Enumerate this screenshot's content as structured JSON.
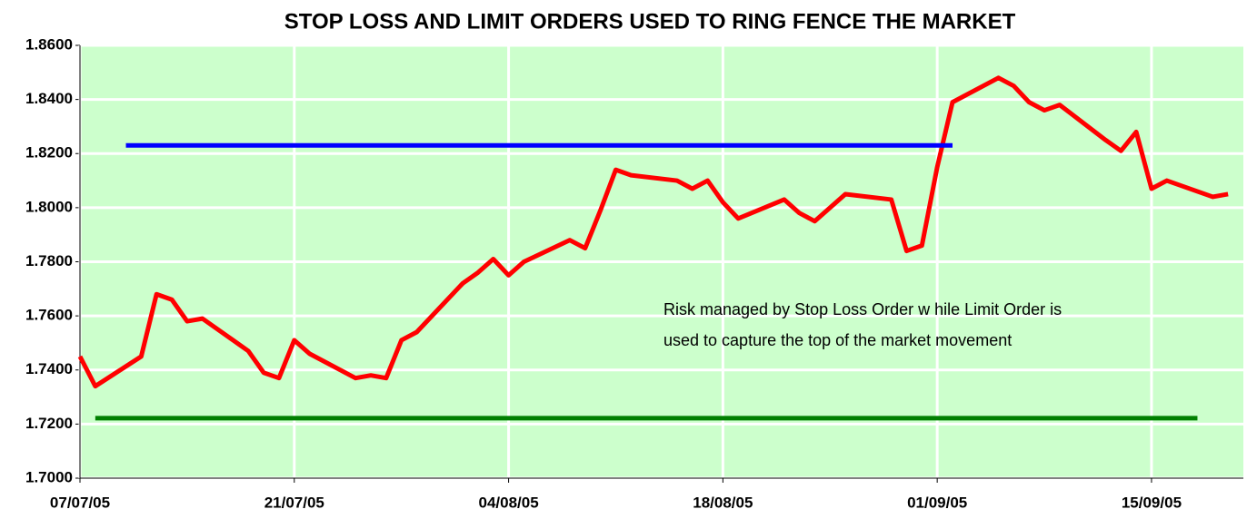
{
  "chart_data": {
    "type": "line",
    "title": "STOP LOSS AND LIMIT ORDERS USED TO RING FENCE THE MARKET",
    "annotation": [
      "Risk managed by Stop Loss Order w hile Limit Order is",
      "used to capture the top of the market movement"
    ],
    "xlim": [
      "07/07/05",
      "21/09/05"
    ],
    "xticks": [
      "07/07/05",
      "21/07/05",
      "04/08/05",
      "18/08/05",
      "01/09/05",
      "15/09/05"
    ],
    "ylim": [
      1.7,
      1.86
    ],
    "yticks": [
      {
        "value": 1.7,
        "label": "1.7000"
      },
      {
        "value": 1.72,
        "label": "1.7200"
      },
      {
        "value": 1.74,
        "label": "1.7400"
      },
      {
        "value": 1.76,
        "label": "1.7600"
      },
      {
        "value": 1.78,
        "label": "1.7800"
      },
      {
        "value": 1.8,
        "label": "1.8000"
      },
      {
        "value": 1.82,
        "label": "1.8200"
      },
      {
        "value": 1.84,
        "label": "1.8400"
      },
      {
        "value": 1.86,
        "label": "1.8600"
      }
    ],
    "grid": true,
    "background": "#ccffcc",
    "series": [
      {
        "color": "#ff0000",
        "x": [
          "07/07/05",
          "08/07/05",
          "11/07/05",
          "12/07/05",
          "13/07/05",
          "14/07/05",
          "15/07/05",
          "18/07/05",
          "19/07/05",
          "20/07/05",
          "21/07/05",
          "22/07/05",
          "25/07/05",
          "26/07/05",
          "27/07/05",
          "28/07/05",
          "29/07/05",
          "01/08/05",
          "02/08/05",
          "03/08/05",
          "04/08/05",
          "05/08/05",
          "08/08/05",
          "09/08/05",
          "10/08/05",
          "11/08/05",
          "12/08/05",
          "15/08/05",
          "16/08/05",
          "17/08/05",
          "18/08/05",
          "19/08/05",
          "22/08/05",
          "23/08/05",
          "24/08/05",
          "25/08/05",
          "26/08/05",
          "29/08/05",
          "30/08/05",
          "31/08/05",
          "01/09/05",
          "02/09/05",
          "05/09/05",
          "06/09/05",
          "07/09/05",
          "08/09/05",
          "09/09/05",
          "12/09/05",
          "13/09/05",
          "14/09/05",
          "15/09/05",
          "16/09/05",
          "19/09/05",
          "20/09/05"
        ],
        "values": [
          1.745,
          1.734,
          1.745,
          1.768,
          1.766,
          1.758,
          1.759,
          1.747,
          1.739,
          1.737,
          1.751,
          1.746,
          1.737,
          1.738,
          1.737,
          1.751,
          1.754,
          1.772,
          1.776,
          1.781,
          1.775,
          1.78,
          1.788,
          1.785,
          1.799,
          1.814,
          1.812,
          1.81,
          1.807,
          1.81,
          1.802,
          1.796,
          1.803,
          1.798,
          1.795,
          1.8,
          1.805,
          1.803,
          1.784,
          1.786,
          1.815,
          1.839,
          1.848,
          1.845,
          1.839,
          1.836,
          1.838,
          1.825,
          1.821,
          1.828,
          1.807,
          1.81,
          1.804,
          1.805
        ]
      },
      {
        "color": "#0000ff",
        "x": [
          "10/07/05",
          "02/09/05"
        ],
        "values": [
          1.823,
          1.823
        ]
      },
      {
        "color": "#008000",
        "x": [
          "08/07/05",
          "18/09/05"
        ],
        "values": [
          1.7222,
          1.7222
        ]
      }
    ]
  }
}
